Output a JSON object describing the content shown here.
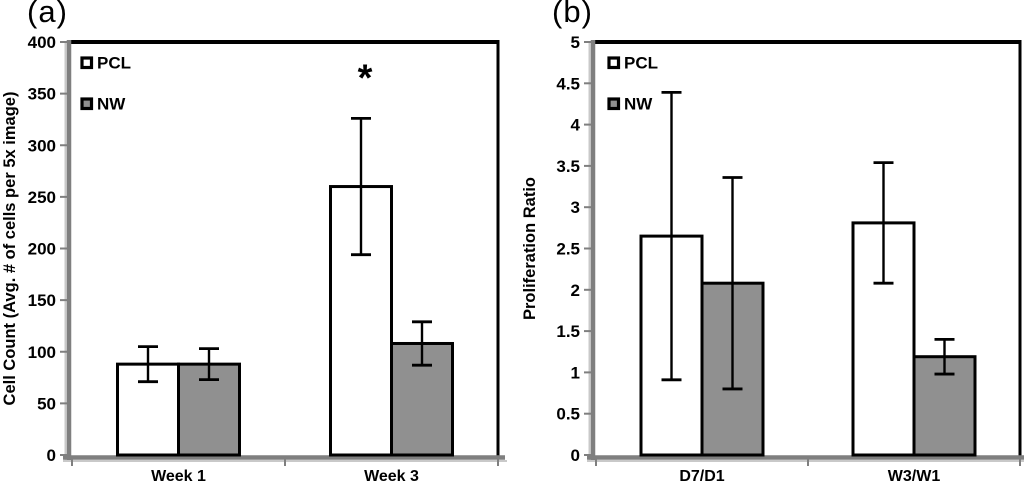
{
  "figure": {
    "panel_a_label": "(a)",
    "panel_b_label": "(b)"
  },
  "colors": {
    "pcl_fill": "#ffffff",
    "nw_fill": "#909090",
    "bar_border": "#000000",
    "error_bar": "#000000",
    "axis_line": "#7f7f7f",
    "axis_shadow": "#c9c9c9",
    "plot_border": "#000000",
    "text": "#000000",
    "background": "#ffffff"
  },
  "chart_data": [
    {
      "type": "bar",
      "panel_label": "(a)",
      "title": "",
      "xlabel": "",
      "ylabel": "Cell Count (Avg. # of cells per 5x image)",
      "categories": [
        "Week 1",
        "Week 3"
      ],
      "series": [
        {
          "name": "PCL",
          "fill": "#ffffff",
          "values": [
            88,
            260
          ],
          "errors": [
            17,
            66
          ]
        },
        {
          "name": "NW",
          "fill": "#909090",
          "values": [
            88,
            108
          ],
          "errors": [
            15,
            21
          ]
        }
      ],
      "ylim": [
        0,
        400
      ],
      "ytick_step": 50,
      "grid": false,
      "legend_position": "top-left",
      "legend_labels": [
        "PCL",
        "NW"
      ],
      "annotations": [
        {
          "text": "*",
          "series": "PCL",
          "category": "Week 3"
        }
      ]
    },
    {
      "type": "bar",
      "panel_label": "(b)",
      "title": "",
      "xlabel": "",
      "ylabel": "Proliferation Ratio",
      "categories": [
        "D7/D1",
        "W3/W1"
      ],
      "series": [
        {
          "name": "PCL",
          "fill": "#ffffff",
          "values": [
            2.65,
            2.81
          ],
          "errors": [
            1.74,
            0.73
          ]
        },
        {
          "name": "NW",
          "fill": "#909090",
          "values": [
            2.08,
            1.19
          ],
          "errors": [
            1.28,
            0.21
          ]
        }
      ],
      "ylim": [
        0,
        5
      ],
      "ytick_step": 0.5,
      "grid": false,
      "legend_position": "top-left",
      "legend_labels": [
        "PCL",
        "NW"
      ],
      "annotations": []
    }
  ]
}
